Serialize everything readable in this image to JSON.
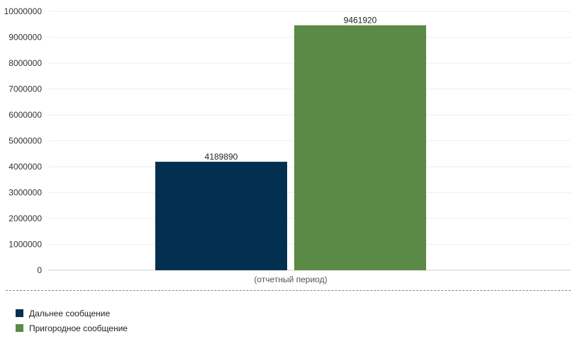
{
  "chart_data": {
    "type": "bar",
    "categories": [
      "(отчетный период)"
    ],
    "series": [
      {
        "name": "Дальнее сообщение",
        "values": [
          4189890
        ],
        "color": "#033050"
      },
      {
        "name": "Пригородное сообщение",
        "values": [
          9461920
        ],
        "color": "#5a8a45"
      }
    ],
    "xlabel": "",
    "ylabel": "",
    "ylim": [
      0,
      10000000
    ],
    "yticks": [
      0,
      1000000,
      2000000,
      3000000,
      4000000,
      5000000,
      6000000,
      7000000,
      8000000,
      9000000,
      10000000
    ],
    "grid": true,
    "legend_position": "bottom-left",
    "data_labels": [
      "4189890",
      "9461920"
    ]
  }
}
